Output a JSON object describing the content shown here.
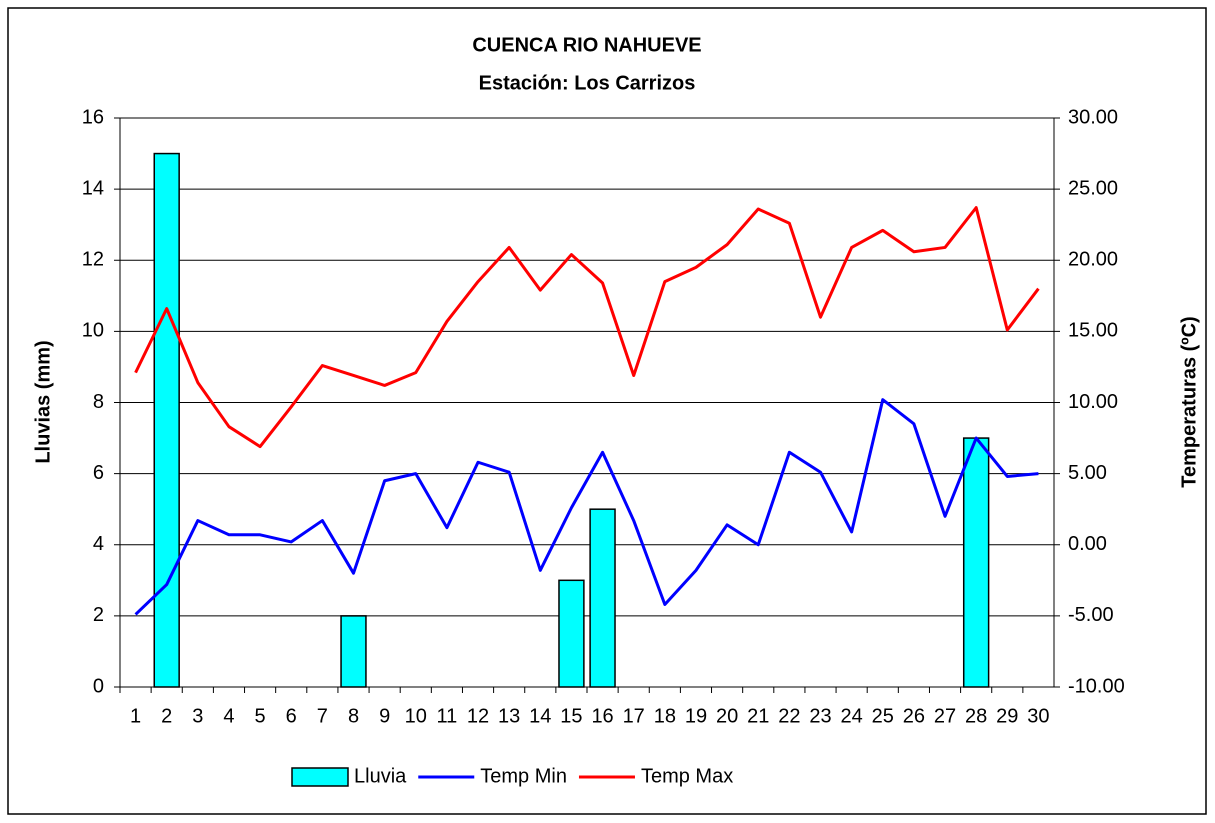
{
  "chart_data": {
    "type": "combo",
    "title": "CUENCA RIO NAHUEVE",
    "subtitle": "Estación: Los Carrizos",
    "y_label": "Lluvias (mm)",
    "y2_label": "Temperaturas (ºC)",
    "categories": [
      "1",
      "2",
      "3",
      "4",
      "5",
      "6",
      "7",
      "8",
      "9",
      "10",
      "11",
      "12",
      "13",
      "14",
      "15",
      "16",
      "17",
      "18",
      "19",
      "20",
      "21",
      "22",
      "23",
      "24",
      "25",
      "26",
      "27",
      "28",
      "29",
      "30"
    ],
    "series": [
      {
        "name": "Lluvia",
        "type": "bar",
        "color": "#00ffff",
        "values": [
          0,
          15,
          0,
          0,
          0,
          0,
          0,
          2,
          0,
          0,
          0,
          0,
          0,
          0,
          3,
          5,
          0,
          0,
          0,
          0,
          0,
          0,
          0,
          0,
          0,
          0,
          0,
          7,
          0,
          0
        ]
      },
      {
        "name": "Temp Min",
        "type": "line",
        "axis": "y2",
        "color": "#0000ff",
        "values": [
          -4.9,
          -2.8,
          1.7,
          0.7,
          0.7,
          0.2,
          1.7,
          -2.0,
          4.5,
          5.0,
          1.2,
          5.8,
          5.1,
          -1.8,
          2.6,
          6.5,
          1.7,
          -4.2,
          -1.8,
          1.4,
          0.0,
          6.5,
          5.1,
          0.9,
          10.2,
          8.5,
          2.0,
          7.5,
          4.8,
          5.0
        ]
      },
      {
        "name": "Temp Max",
        "type": "line",
        "axis": "y2",
        "color": "#ff0000",
        "values": [
          12.1,
          16.6,
          11.4,
          8.3,
          6.9,
          9.7,
          12.6,
          11.9,
          11.2,
          12.1,
          15.7,
          18.5,
          20.9,
          17.9,
          20.4,
          18.4,
          11.9,
          18.5,
          19.5,
          21.1,
          23.6,
          22.6,
          16.0,
          20.9,
          22.1,
          20.6,
          20.9,
          23.7,
          15.1,
          18.0
        ]
      }
    ],
    "ylim": [
      0,
      16
    ],
    "yticks": [
      0,
      2,
      4,
      6,
      8,
      10,
      12,
      14,
      16
    ],
    "y2lim": [
      -10,
      30
    ],
    "y2ticks": [
      {
        "value": -10,
        "label": "-10.00"
      },
      {
        "value": -5,
        "label": "-5.00"
      },
      {
        "value": 0,
        "label": "0.00"
      },
      {
        "value": 5,
        "label": "5.00"
      },
      {
        "value": 10,
        "label": "10.00"
      },
      {
        "value": 15,
        "label": "15.00"
      },
      {
        "value": 20,
        "label": "20.00"
      },
      {
        "value": 25,
        "label": "25.00"
      },
      {
        "value": 30,
        "label": "30.00"
      }
    ],
    "grid": true,
    "legend": "bottom"
  }
}
